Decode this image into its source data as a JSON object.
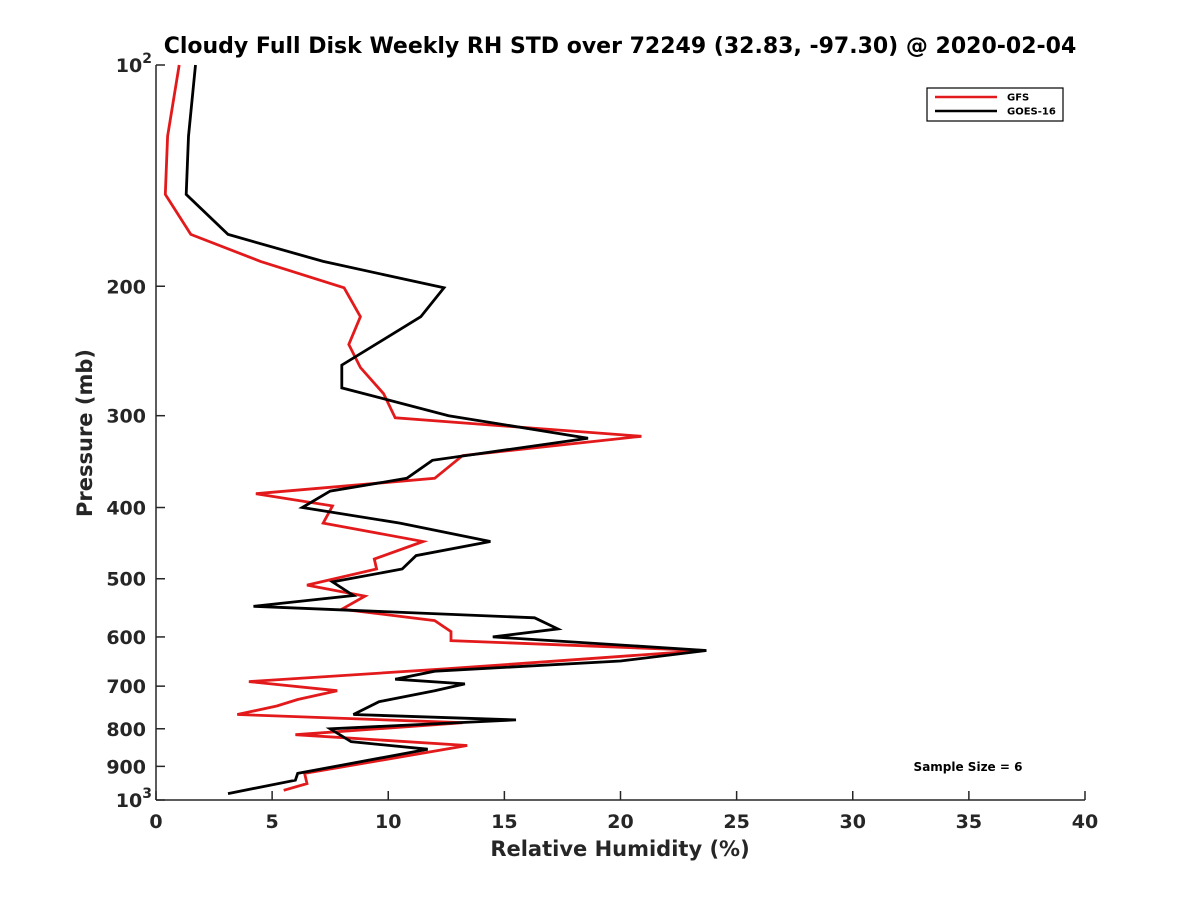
{
  "chart_data": {
    "type": "line",
    "title": "Cloudy Full Disk Weekly RH STD over 72249 (32.83, -97.30) @ 2020-02-04",
    "xlabel": "Relative Humidity (%)",
    "ylabel": "Pressure (mb)",
    "xlim": [
      0,
      40
    ],
    "ylim": [
      100,
      1000
    ],
    "yscale": "log",
    "y_reversed": true,
    "x_ticks": [
      "0",
      "5",
      "10",
      "15",
      "20",
      "25",
      "30",
      "35",
      "40"
    ],
    "y_ticks": [
      {
        "value": 100,
        "label": "10",
        "sup": "2"
      },
      {
        "value": 200,
        "label": "200",
        "sup": ""
      },
      {
        "value": 300,
        "label": "300",
        "sup": ""
      },
      {
        "value": 400,
        "label": "400",
        "sup": ""
      },
      {
        "value": 500,
        "label": "500",
        "sup": ""
      },
      {
        "value": 600,
        "label": "600",
        "sup": ""
      },
      {
        "value": 700,
        "label": "700",
        "sup": ""
      },
      {
        "value": 800,
        "label": "800",
        "sup": ""
      },
      {
        "value": 900,
        "label": "900",
        "sup": ""
      },
      {
        "value": 1000,
        "label": "10",
        "sup": "3"
      }
    ],
    "grid": false,
    "legend_position": "top-right",
    "series": [
      {
        "name": "GFS",
        "color": "#e31a1c",
        "points": [
          [
            1.0,
            100
          ],
          [
            0.5,
            125
          ],
          [
            0.4,
            150
          ],
          [
            1.5,
            170
          ],
          [
            4.5,
            185
          ],
          [
            8.1,
            201
          ],
          [
            8.8,
            220
          ],
          [
            8.3,
            240
          ],
          [
            8.8,
            258
          ],
          [
            9.8,
            280
          ],
          [
            10.3,
            302
          ],
          [
            20.9,
            320
          ],
          [
            13.2,
            340
          ],
          [
            12.0,
            365
          ],
          [
            4.3,
            383
          ],
          [
            7.6,
            398
          ],
          [
            7.2,
            420
          ],
          [
            11.5,
            445
          ],
          [
            9.4,
            470
          ],
          [
            9.5,
            485
          ],
          [
            6.5,
            510
          ],
          [
            9.0,
            528
          ],
          [
            8.0,
            550
          ],
          [
            12.0,
            570
          ],
          [
            12.7,
            590
          ],
          [
            12.7,
            607
          ],
          [
            23.6,
            626
          ],
          [
            12.5,
            663
          ],
          [
            4.0,
            690
          ],
          [
            7.8,
            710
          ],
          [
            6.1,
            730
          ],
          [
            5.2,
            745
          ],
          [
            3.5,
            765
          ],
          [
            13.2,
            785
          ],
          [
            6.0,
            815
          ],
          [
            13.4,
            843
          ],
          [
            6.4,
            920
          ],
          [
            6.5,
            950
          ],
          [
            5.5,
            970
          ]
        ]
      },
      {
        "name": "GOES-16",
        "color": "#000000",
        "points": [
          [
            1.7,
            100
          ],
          [
            1.4,
            125
          ],
          [
            1.3,
            150
          ],
          [
            3.1,
            170
          ],
          [
            7.2,
            185
          ],
          [
            12.4,
            201
          ],
          [
            11.4,
            220
          ],
          [
            8.0,
            256
          ],
          [
            8.0,
            275
          ],
          [
            12.6,
            300
          ],
          [
            18.6,
            322
          ],
          [
            11.9,
            345
          ],
          [
            10.8,
            365
          ],
          [
            7.5,
            380
          ],
          [
            6.3,
            400
          ],
          [
            10.5,
            420
          ],
          [
            14.4,
            445
          ],
          [
            11.2,
            465
          ],
          [
            10.6,
            485
          ],
          [
            7.6,
            505
          ],
          [
            8.5,
            527
          ],
          [
            4.2,
            545
          ],
          [
            16.3,
            565
          ],
          [
            17.3,
            585
          ],
          [
            14.5,
            600
          ],
          [
            23.7,
            626
          ],
          [
            20.0,
            647
          ],
          [
            12.0,
            668
          ],
          [
            10.3,
            685
          ],
          [
            13.3,
            695
          ],
          [
            12.0,
            710
          ],
          [
            9.6,
            735
          ],
          [
            8.5,
            765
          ],
          [
            15.5,
            778
          ],
          [
            7.5,
            800
          ],
          [
            8.4,
            833
          ],
          [
            11.7,
            853
          ],
          [
            6.1,
            920
          ],
          [
            6.0,
            940
          ],
          [
            3.1,
            980
          ]
        ]
      }
    ],
    "annotation": "Sample Size = 6"
  }
}
